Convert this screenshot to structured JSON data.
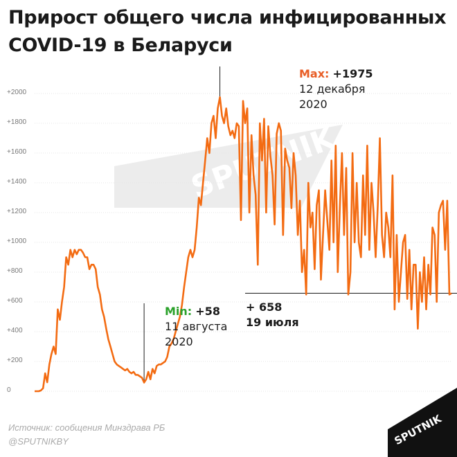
{
  "title_lines": [
    "Прирост общего числа инфицированных",
    "COVID-19 в Беларуси"
  ],
  "watermark": "SPUTNIK",
  "logo": "SPUTNIK",
  "max_annotation": {
    "key": "Max:",
    "value": "+1975",
    "date_line1": "12 декабря",
    "date_line2": "2020"
  },
  "min_annotation": {
    "key": "Min:",
    "value": "+58",
    "date_line1": "11 августа",
    "date_line2": "2020"
  },
  "recent_annotation": {
    "value": "+ 658",
    "date": "19 июля"
  },
  "footer": {
    "source": "Источник: сообщения Минздрава РБ",
    "handle": "@SPUTNIKBY"
  },
  "colors": {
    "line": "#f36b12",
    "max": "#e85d25",
    "min": "#2aa12a",
    "text": "#1a1a1a"
  },
  "chart_data": {
    "type": "line",
    "title": "Прирост общего числа инфицированных COVID-19 в Беларуси",
    "yticks": [
      {
        "value": 0,
        "label": "0"
      },
      {
        "value": 200,
        "label": "+200"
      },
      {
        "value": 400,
        "label": "+400"
      },
      {
        "value": 600,
        "label": "+600"
      },
      {
        "value": 800,
        "label": "+800"
      },
      {
        "value": 1000,
        "label": "+1000"
      },
      {
        "value": 1200,
        "label": "+1200"
      },
      {
        "value": 1400,
        "label": "+1400"
      },
      {
        "value": 1600,
        "label": "+1600"
      },
      {
        "value": 1800,
        "label": "+1800"
      },
      {
        "value": 2000,
        "label": "+2000"
      }
    ],
    "ylim": [
      0,
      2000
    ],
    "grid": true,
    "reference_line": 658,
    "series": [
      {
        "values": [
          0,
          0,
          0,
          5,
          20,
          120,
          60,
          180,
          250,
          300,
          250,
          550,
          480,
          600,
          700,
          900,
          850,
          950,
          900,
          950,
          920,
          950,
          950,
          930,
          900,
          900,
          820,
          850,
          850,
          820,
          700,
          650,
          550,
          500,
          420,
          350,
          300,
          250,
          200,
          180,
          170,
          160,
          150,
          140,
          150,
          130,
          120,
          130,
          110,
          110,
          100,
          90,
          58,
          80,
          130,
          80,
          150,
          120,
          170,
          180,
          180,
          190,
          200,
          230,
          300,
          320,
          350,
          400,
          450,
          500,
          580,
          700,
          800,
          900,
          950,
          900,
          950,
          1100,
          1300,
          1250,
          1400,
          1550,
          1700,
          1600,
          1800,
          1850,
          1700,
          1900,
          1975,
          1850,
          1800,
          1900,
          1780,
          1720,
          1750,
          1700,
          1800,
          1780,
          1150,
          1950,
          1800,
          1900,
          1200,
          1720,
          1450,
          1320,
          850,
          1800,
          1550,
          1830,
          1200,
          1780,
          1580,
          1450,
          1120,
          1730,
          1800,
          1750,
          1050,
          1630,
          1550,
          1500,
          1230,
          1600,
          1450,
          1050,
          1280,
          800,
          950,
          650,
          1400,
          1100,
          1200,
          820,
          1250,
          1350,
          750,
          1050,
          1350,
          1150,
          950,
          1550,
          1000,
          1650,
          800,
          1250,
          1600,
          1050,
          1500,
          650,
          800,
          1600,
          1000,
          1400,
          1000,
          900,
          1450,
          1050,
          1650,
          950,
          1400,
          1200,
          900,
          1250,
          1700,
          1050,
          900,
          1200,
          1100,
          900,
          1450,
          550,
          1050,
          600,
          800,
          1000,
          1050,
          620,
          950,
          550,
          850,
          850,
          420,
          800,
          600,
          900,
          550,
          850,
          650,
          1100,
          1050,
          600,
          1200,
          1250,
          1280,
          950,
          1280,
          650,
          658
        ]
      }
    ]
  }
}
